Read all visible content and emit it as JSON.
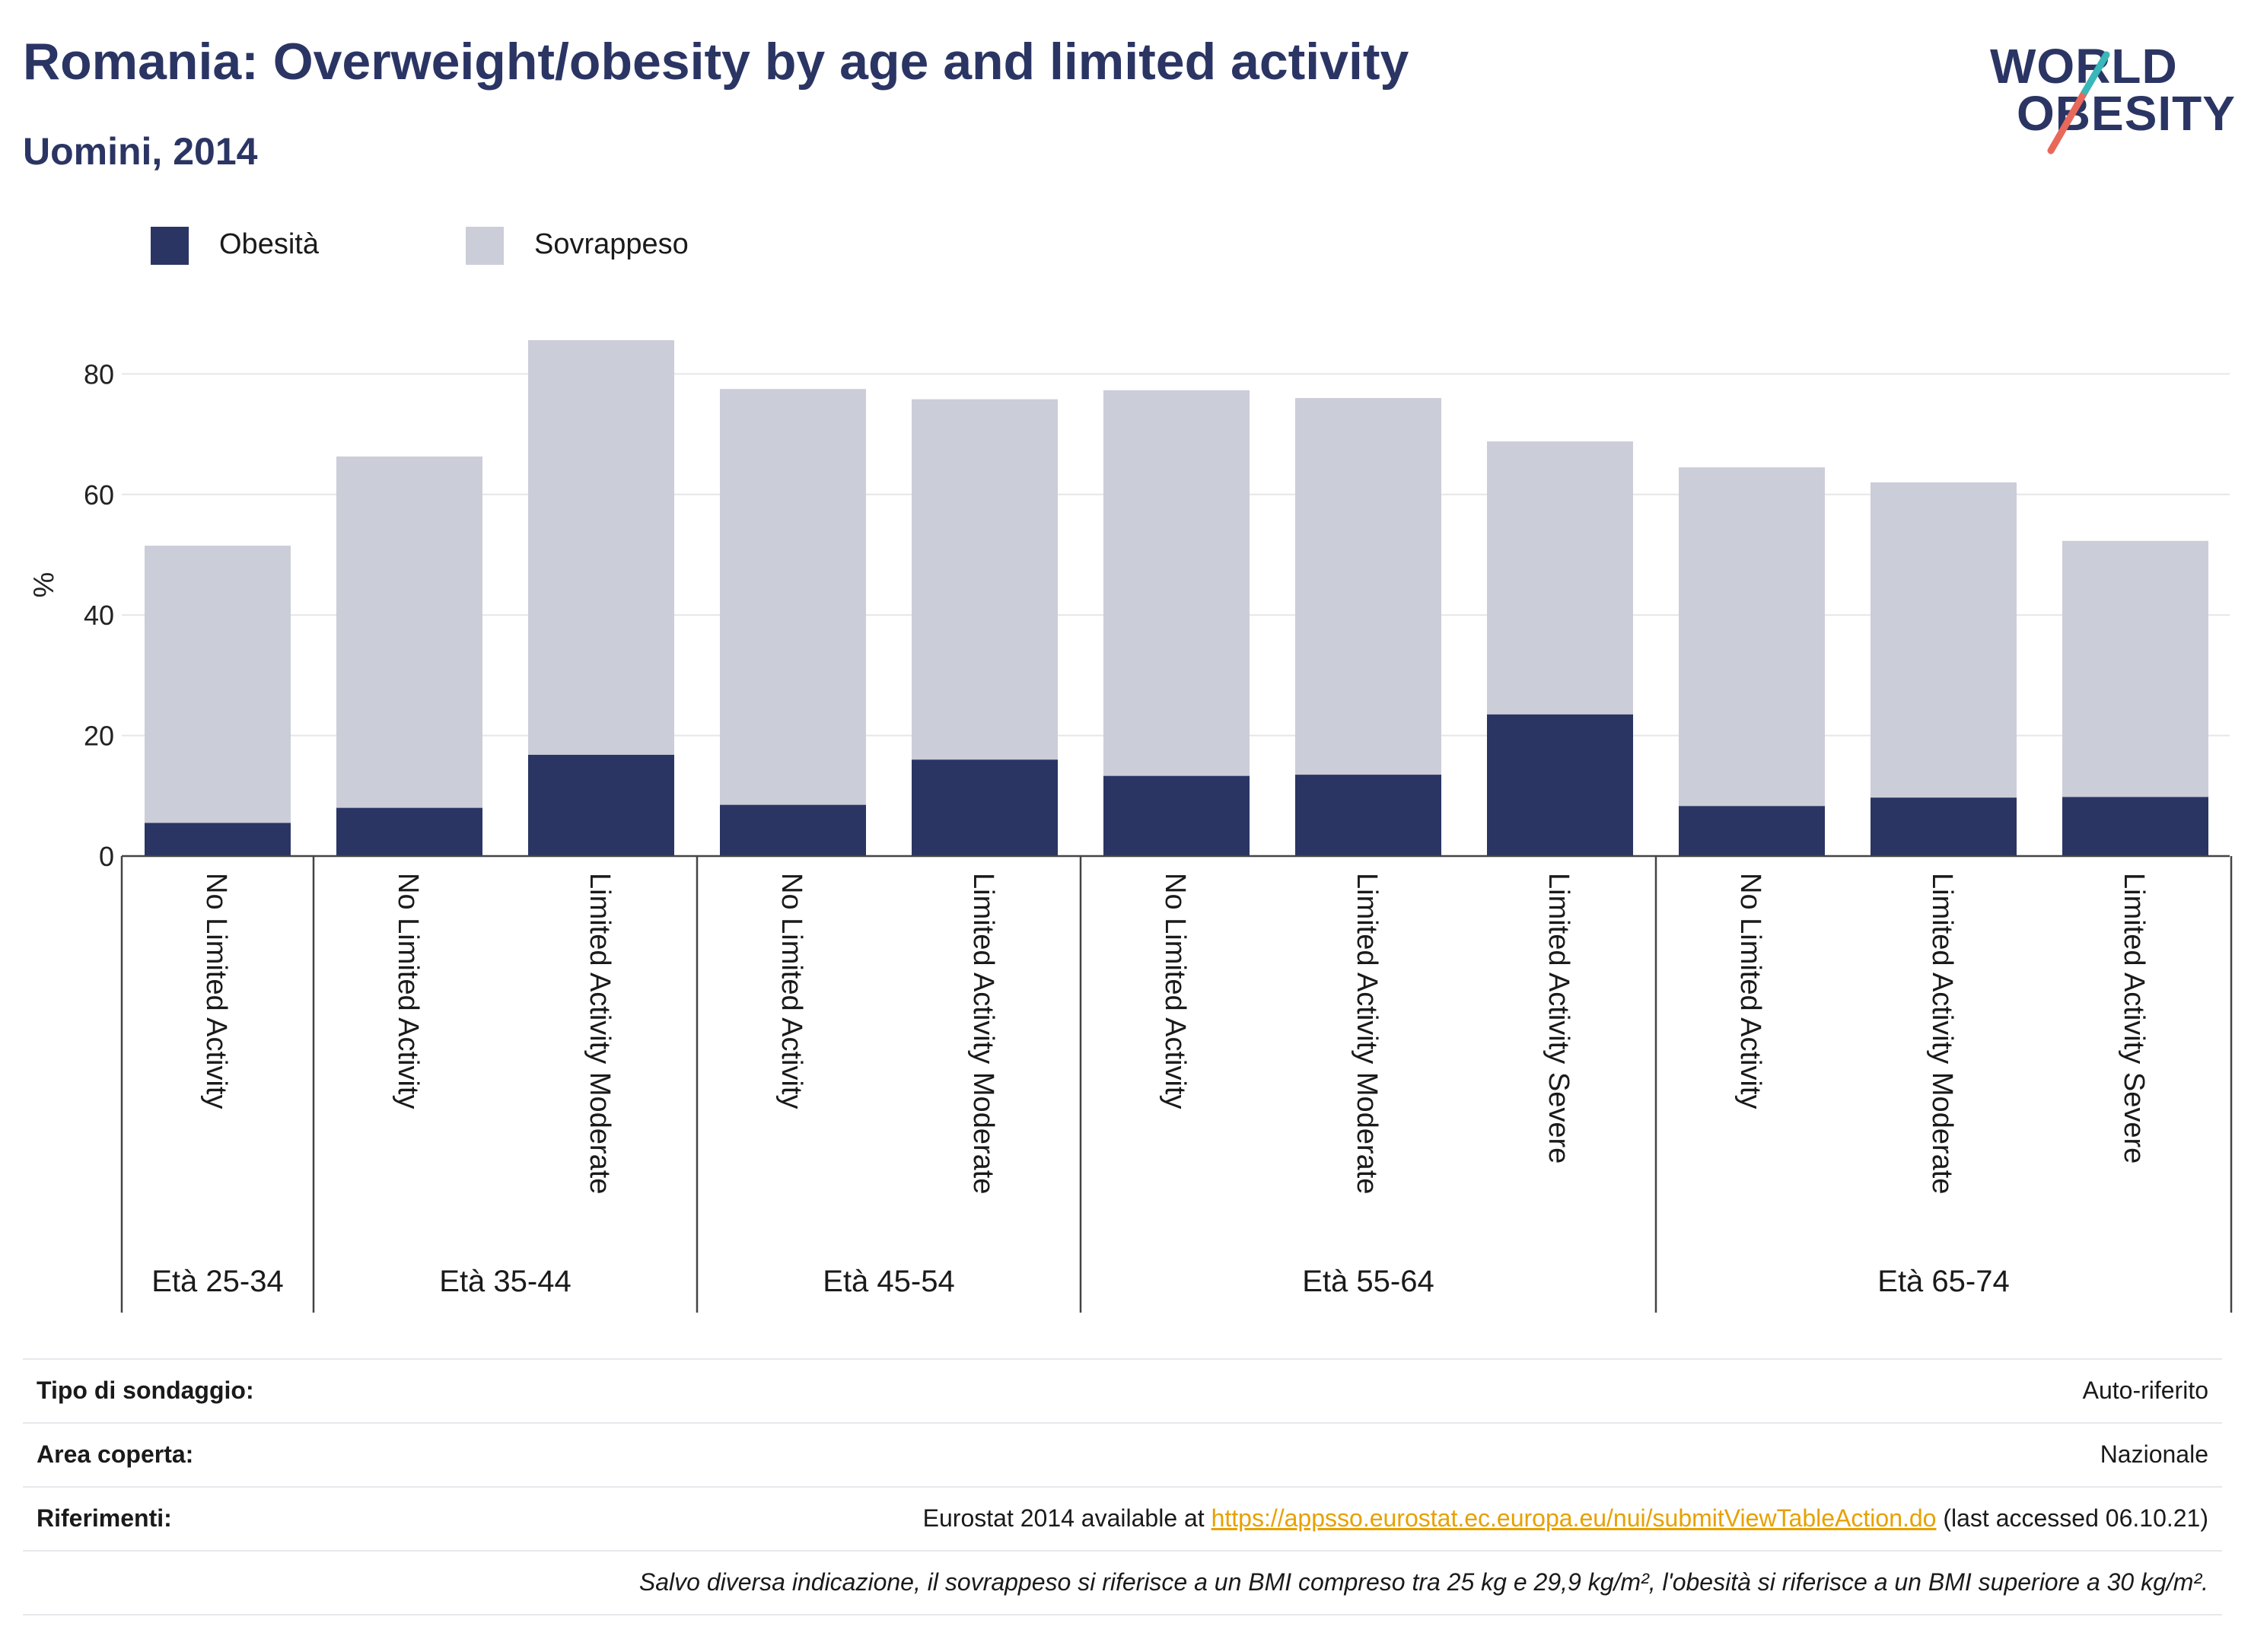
{
  "header": {
    "title": "Romania: Overweight/obesity by age and limited activity",
    "subtitle": "Uomini, 2014",
    "logo_line1": "WORLD",
    "logo_line2": "OBESITY"
  },
  "colors": {
    "obesity": "#2b3564",
    "overweight": "#cbcdd9",
    "title": "#2b3564",
    "link": "#e6a100",
    "logo_slash_teal": "#3ab7b9",
    "logo_slash_red": "#e8685a"
  },
  "chart_data": {
    "type": "bar",
    "stacked": true,
    "ylabel": "%",
    "ylim": [
      0,
      90
    ],
    "yticks": [
      0,
      20,
      40,
      60,
      80
    ],
    "grid": true,
    "legend_position": "top-left",
    "categories": [
      "No Limited Activity",
      "No Limited Activity",
      "Limited Activity Moderate",
      "No Limited Activity",
      "Limited Activity Moderate",
      "No Limited Activity",
      "Limited Activity Moderate",
      "Limited Activity Severe",
      "No Limited Activity",
      "Limited Activity Moderate",
      "Limited Activity Severe"
    ],
    "groups": [
      {
        "label": "Età 25-34",
        "count": 1
      },
      {
        "label": "Età 35-44",
        "count": 2
      },
      {
        "label": "Età 45-54",
        "count": 2
      },
      {
        "label": "Età 55-64",
        "count": 3
      },
      {
        "label": "Età 65-74",
        "count": 3
      }
    ],
    "series": [
      {
        "name": "Obesità",
        "values": [
          5.5,
          8.0,
          16.8,
          8.5,
          16.0,
          13.3,
          13.5,
          23.5,
          8.3,
          9.7,
          9.8
        ]
      },
      {
        "name": "Sovrappeso",
        "values": [
          46.0,
          58.3,
          68.8,
          69.0,
          59.8,
          64.0,
          62.5,
          45.3,
          56.2,
          52.3,
          42.5
        ]
      }
    ]
  },
  "info": {
    "survey_label": "Tipo di sondaggio:",
    "survey_value": "Auto-riferito",
    "area_label": "Area coperta:",
    "area_value": "Nazionale",
    "ref_label": "Riferimenti:",
    "ref_prefix": "Eurostat 2014 available at ",
    "ref_link": "https://appsso.eurostat.ec.europa.eu/nui/submitViewTableAction.do",
    "ref_suffix": " (last accessed 06.10.21)",
    "note": "Salvo diversa indicazione, il sovrappeso si riferisce a un BMI compreso tra 25 kg e 29,9 kg/m², l'obesità si riferisce a un BMI superiore a 30 kg/m²."
  }
}
